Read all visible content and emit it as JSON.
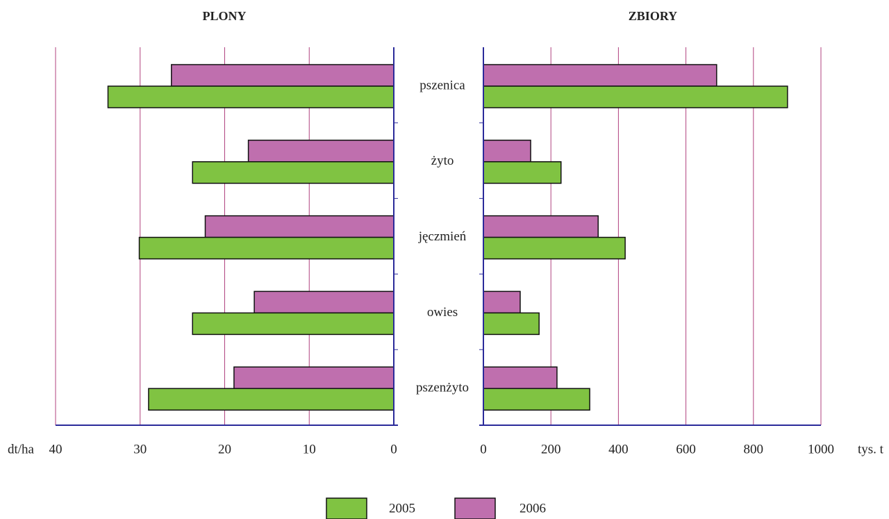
{
  "chart_data": [
    {
      "type": "bar",
      "orientation": "horizontal",
      "title": "PLONY",
      "x_label": "dt/ha",
      "categories": [
        "pszenica",
        "żyto",
        "jęczmień",
        "owies",
        "pszenżyto"
      ],
      "series": [
        {
          "name": "2005",
          "color": "#80c342",
          "values": [
            33.8,
            23.8,
            30.1,
            23.8,
            29.0
          ]
        },
        {
          "name": "2006",
          "color": "#bf6fae",
          "values": [
            26.3,
            17.2,
            22.3,
            16.5,
            18.9
          ]
        }
      ],
      "xlim": [
        40,
        0
      ],
      "xticks": [
        40,
        30,
        20,
        10,
        0
      ],
      "grid": true
    },
    {
      "type": "bar",
      "orientation": "horizontal",
      "title": "ZBIORY",
      "x_label": "tys. t",
      "series": [
        {
          "color": "#80c342",
          "values": [
            901,
            230,
            420,
            165,
            315
          ]
        },
        {
          "color": "#bf6fae",
          "values": [
            691,
            140,
            340,
            109,
            218
          ]
        }
      ],
      "xlim": [
        0,
        1000
      ],
      "xticks": [
        0,
        200,
        400,
        600,
        800,
        1000
      ],
      "grid": true
    }
  ]
}
